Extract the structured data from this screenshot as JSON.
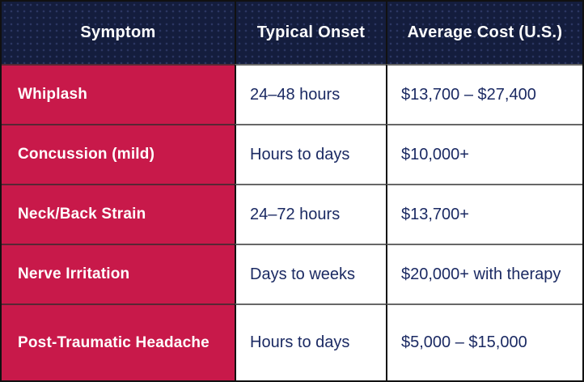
{
  "table": {
    "columns": [
      {
        "label": "Symptom"
      },
      {
        "label": "Typical Onset"
      },
      {
        "label": "Average Cost (U.S.)"
      }
    ],
    "rows": [
      {
        "symptom": "Whiplash",
        "onset": "24–48 hours",
        "cost": "$13,700 – $27,400"
      },
      {
        "symptom": "Concussion (mild)",
        "onset": "Hours to days",
        "cost": "$10,000+"
      },
      {
        "symptom": "Neck/Back Strain",
        "onset": "24–72 hours",
        "cost": "$13,700+"
      },
      {
        "symptom": "Nerve Irritation",
        "onset": "Days to weeks",
        "cost": "$20,000+ with therapy"
      },
      {
        "symptom": "Post-Traumatic Headache",
        "onset": "Hours to days",
        "cost": "$5,000 – $15,000"
      }
    ],
    "colors": {
      "header_bg": "#141d3d",
      "header_dot": "#2c3763",
      "symptom_bg": "#c8194a",
      "cell_text": "#1b2a63",
      "header_text": "#ffffff",
      "column_border": "#111111",
      "outer_border": "#111111"
    }
  }
}
